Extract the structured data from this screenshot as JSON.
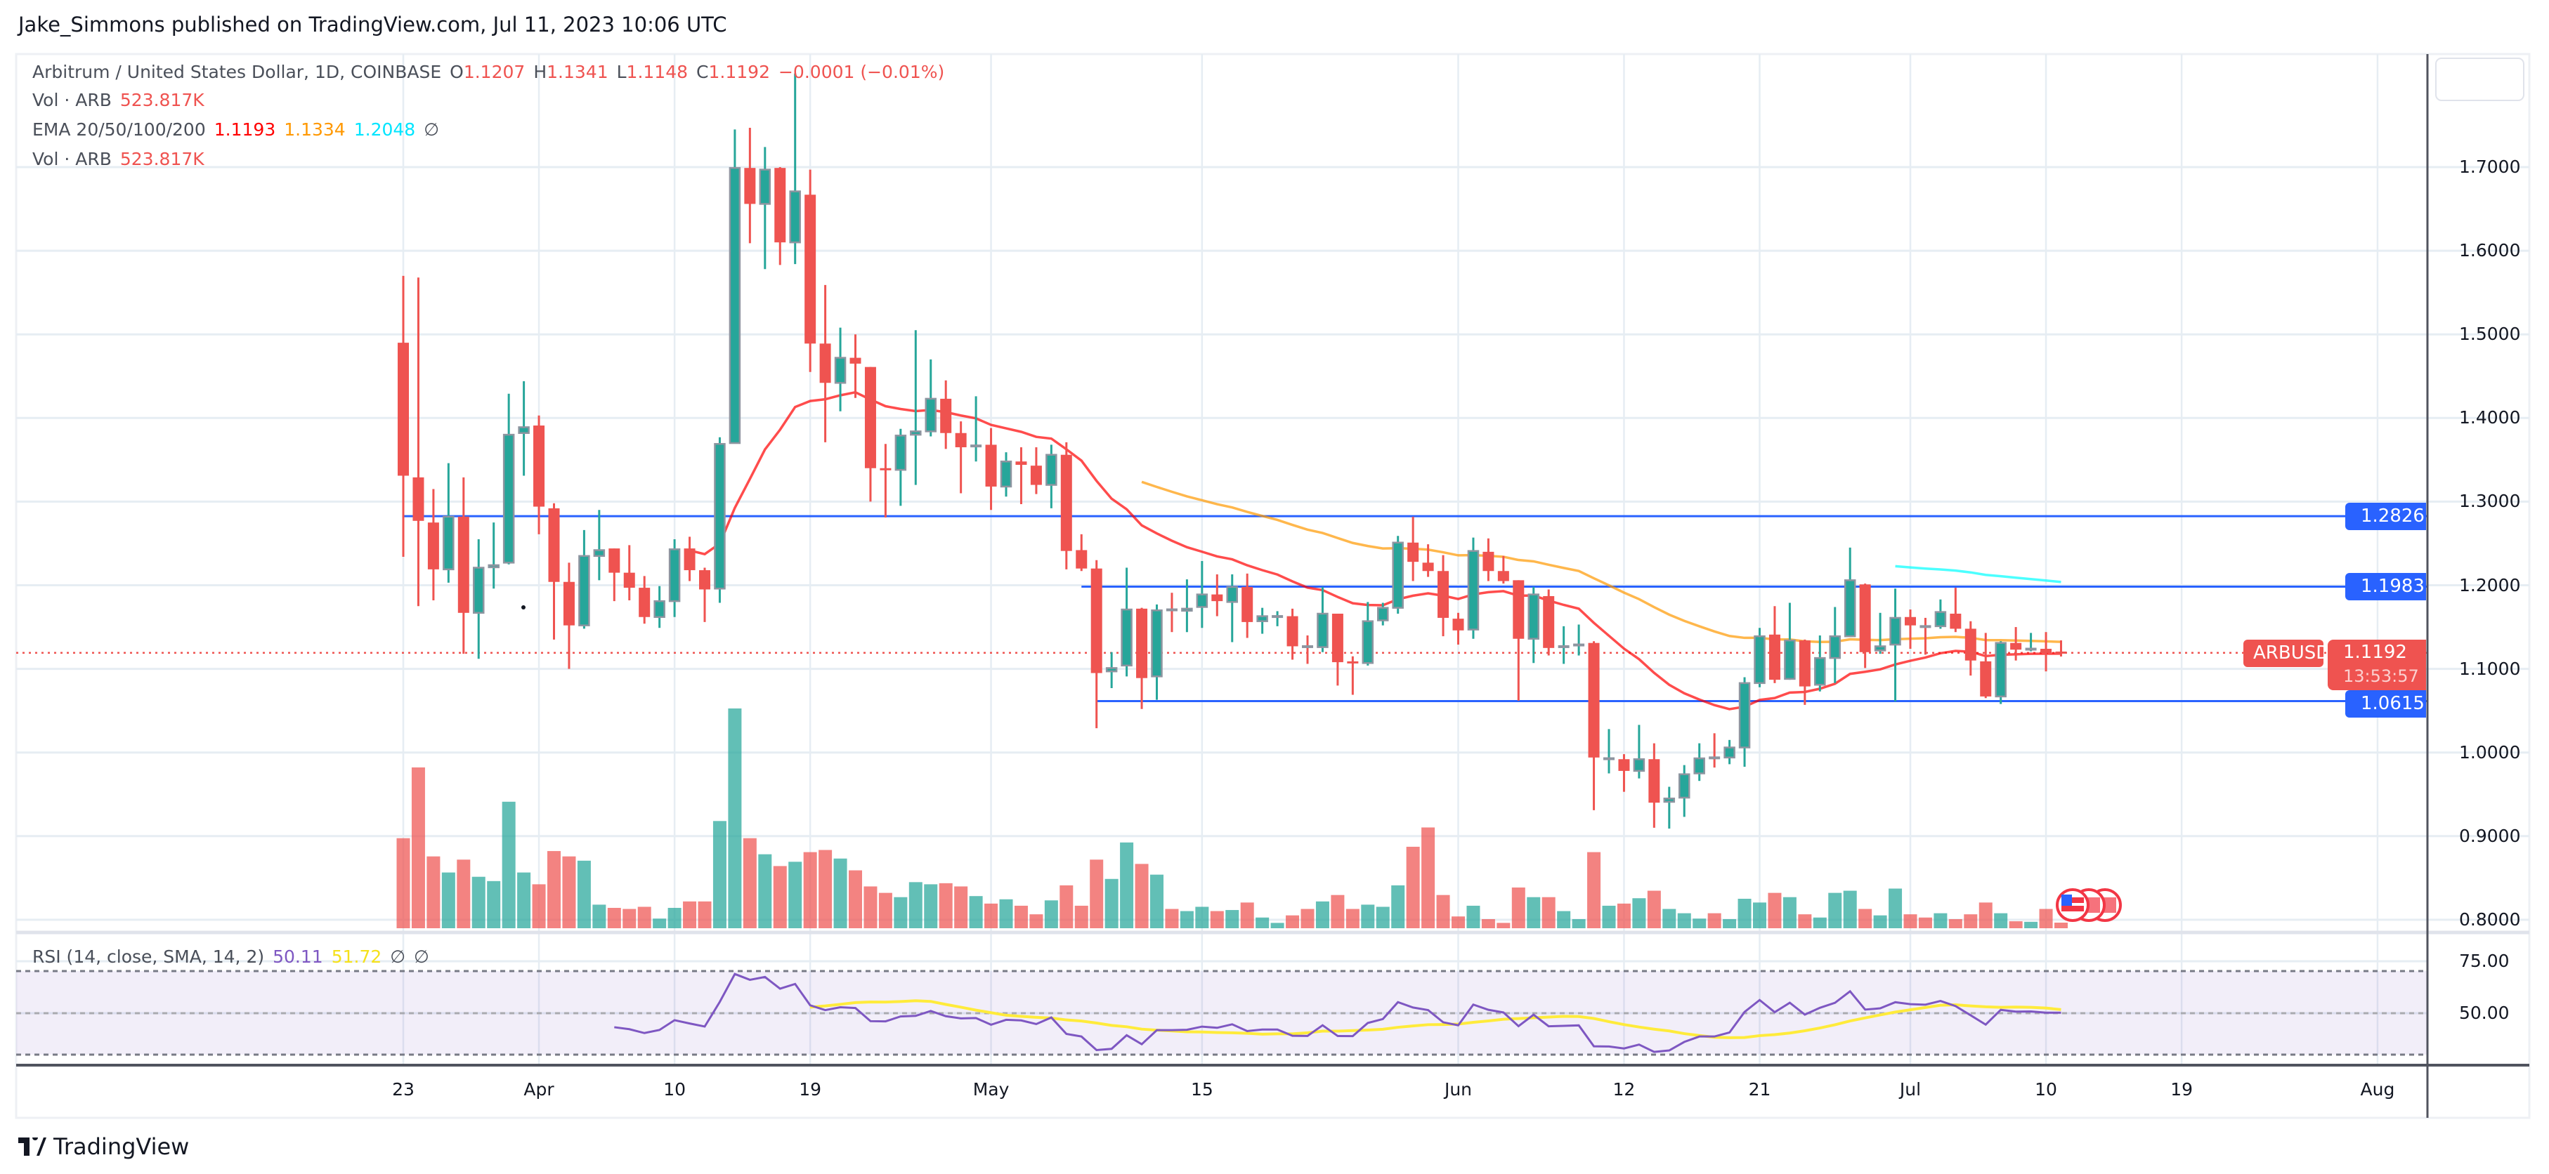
{
  "publisher_line": "Jake_Simmons published on TradingView.com, Jul 11, 2023 10:06 UTC",
  "legend": {
    "symbol": "Arbitrum / United States Dollar, 1D, COINBASE",
    "o_label": "O",
    "o": "1.1207",
    "h_label": "H",
    "h": "1.1341",
    "l_label": "L",
    "l": "1.1148",
    "c_label": "C",
    "c": "1.1192",
    "change": "−0.0001 (−0.01%)",
    "vol1_label": "Vol · ARB",
    "vol1_value": "523.817K",
    "ema_label": "EMA 20/50/100/200",
    "ema20": "1.1193",
    "ema50": "1.1334",
    "ema100": "1.2048",
    "ema200": "∅",
    "vol2_label": "Vol · ARB",
    "vol2_value": "523.817K",
    "rsi_label": "RSI (14, close, SMA, 14, 2)",
    "rsi_value": "50.11",
    "rsi_sma_value": "51.72",
    "rsi_extra1": "∅",
    "rsi_extra2": "∅"
  },
  "price_axis": [
    "1.7000",
    "1.6000",
    "1.5000",
    "1.4000",
    "1.3000",
    "1.2000",
    "1.1000",
    "1.0000",
    "0.9000",
    "0.8000"
  ],
  "rsi_axis": [
    "75.00",
    "50.00"
  ],
  "price_labels": {
    "symbol_tag": "ARBUSD",
    "last_price": "1.1192",
    "countdown": "13:53:57",
    "levels": [
      "1.2826",
      "1.1983",
      "1.0615"
    ]
  },
  "time_axis": [
    {
      "label": "23",
      "date": "2023-03-23"
    },
    {
      "label": "Apr",
      "date": "2023-04-01"
    },
    {
      "label": "10",
      "date": "2023-04-10"
    },
    {
      "label": "19",
      "date": "2023-04-19"
    },
    {
      "label": "May",
      "date": "2023-05-01"
    },
    {
      "label": "15",
      "date": "2023-05-15"
    },
    {
      "label": "Jun",
      "date": "2023-06-01"
    },
    {
      "label": "12",
      "date": "2023-06-12"
    },
    {
      "label": "21",
      "date": "2023-06-21"
    },
    {
      "label": "Jul",
      "date": "2023-07-01"
    },
    {
      "label": "10",
      "date": "2023-07-10"
    },
    {
      "label": "19",
      "date": "2023-07-19"
    },
    {
      "label": "Aug",
      "date": "2023-08-01"
    }
  ],
  "logo_text": "TradingView",
  "colors": {
    "up": "#26a69a",
    "down": "#ef5350",
    "level": "#2962ff",
    "ema20": "#ff0000",
    "ema50": "#ff9800",
    "ema100": "#00ffff",
    "rsi": "#7e57c2",
    "rsi_sma": "#ffeb3b"
  },
  "chart_data": {
    "type": "candlestick",
    "symbol": "ARBUSD",
    "interval": "1D",
    "ylim": [
      0.8,
      1.8
    ],
    "xlim": [
      "2023-03-23",
      "2023-08-04"
    ],
    "grid": true,
    "columns": [
      "date",
      "open",
      "high",
      "low",
      "close",
      "volume_millions"
    ],
    "candles": [
      [
        "2023-03-23",
        1.49,
        1.57,
        1.234,
        1.331,
        8.4
      ],
      [
        "2023-03-24",
        1.329,
        1.568,
        1.175,
        1.277,
        15.0
      ],
      [
        "2023-03-25",
        1.275,
        1.315,
        1.182,
        1.219,
        6.7
      ],
      [
        "2023-03-26",
        1.219,
        1.346,
        1.203,
        1.282,
        5.2
      ],
      [
        "2023-03-27",
        1.282,
        1.329,
        1.118,
        1.167,
        6.4
      ],
      [
        "2023-03-28",
        1.167,
        1.255,
        1.112,
        1.221,
        4.8
      ],
      [
        "2023-03-29",
        1.222,
        1.275,
        1.196,
        1.224,
        4.4
      ],
      [
        "2023-03-30",
        1.227,
        1.429,
        1.225,
        1.38,
        11.8
      ],
      [
        "2023-03-31",
        1.382,
        1.444,
        1.331,
        1.389,
        5.2
      ],
      [
        "2023-04-01",
        1.391,
        1.403,
        1.261,
        1.294,
        4.1
      ],
      [
        "2023-04-02",
        1.292,
        1.298,
        1.135,
        1.204,
        7.2
      ],
      [
        "2023-04-03",
        1.204,
        1.227,
        1.1,
        1.152,
        6.7
      ],
      [
        "2023-04-04",
        1.152,
        1.266,
        1.148,
        1.235,
        6.3
      ],
      [
        "2023-04-05",
        1.235,
        1.29,
        1.206,
        1.242,
        2.2
      ],
      [
        "2023-04-06",
        1.244,
        1.244,
        1.181,
        1.215,
        1.9
      ],
      [
        "2023-04-07",
        1.215,
        1.248,
        1.182,
        1.197,
        1.8
      ],
      [
        "2023-04-08",
        1.197,
        1.211,
        1.154,
        1.162,
        2.0
      ],
      [
        "2023-04-09",
        1.162,
        1.199,
        1.149,
        1.181,
        0.9
      ],
      [
        "2023-04-10",
        1.181,
        1.255,
        1.162,
        1.243,
        1.9
      ],
      [
        "2023-04-11",
        1.244,
        1.258,
        1.205,
        1.218,
        2.5
      ],
      [
        "2023-04-12",
        1.218,
        1.221,
        1.156,
        1.195,
        2.5
      ],
      [
        "2023-04-13",
        1.196,
        1.377,
        1.179,
        1.369,
        10.0
      ],
      [
        "2023-04-14",
        1.37,
        1.745,
        1.37,
        1.699,
        20.5
      ],
      [
        "2023-04-15",
        1.699,
        1.747,
        1.609,
        1.656,
        8.4
      ],
      [
        "2023-04-16",
        1.656,
        1.724,
        1.578,
        1.697,
        6.9
      ],
      [
        "2023-04-17",
        1.699,
        1.7,
        1.583,
        1.61,
        5.8
      ],
      [
        "2023-04-18",
        1.61,
        1.812,
        1.584,
        1.671,
        6.2
      ],
      [
        "2023-04-19",
        1.667,
        1.697,
        1.455,
        1.489,
        7.1
      ],
      [
        "2023-04-20",
        1.489,
        1.559,
        1.371,
        1.442,
        7.3
      ],
      [
        "2023-04-21",
        1.442,
        1.508,
        1.408,
        1.472,
        6.5
      ],
      [
        "2023-04-22",
        1.472,
        1.5,
        1.424,
        1.465,
        5.4
      ],
      [
        "2023-04-23",
        1.461,
        1.461,
        1.3,
        1.34,
        3.9
      ],
      [
        "2023-04-24",
        1.34,
        1.369,
        1.281,
        1.338,
        3.3
      ],
      [
        "2023-04-25",
        1.338,
        1.387,
        1.295,
        1.379,
        2.9
      ],
      [
        "2023-04-26",
        1.38,
        1.505,
        1.32,
        1.384,
        4.3
      ],
      [
        "2023-04-27",
        1.384,
        1.47,
        1.378,
        1.423,
        4.1
      ],
      [
        "2023-04-28",
        1.423,
        1.445,
        1.363,
        1.382,
        4.2
      ],
      [
        "2023-04-29",
        1.382,
        1.396,
        1.31,
        1.365,
        3.9
      ],
      [
        "2023-04-30",
        1.367,
        1.426,
        1.348,
        1.367,
        3.0
      ],
      [
        "2023-05-01",
        1.368,
        1.388,
        1.29,
        1.318,
        2.3
      ],
      [
        "2023-05-02",
        1.318,
        1.359,
        1.306,
        1.348,
        2.7
      ],
      [
        "2023-05-03",
        1.348,
        1.365,
        1.297,
        1.344,
        2.1
      ],
      [
        "2023-05-04",
        1.343,
        1.365,
        1.309,
        1.32,
        1.3
      ],
      [
        "2023-05-05",
        1.32,
        1.368,
        1.292,
        1.356,
        2.6
      ],
      [
        "2023-05-06",
        1.356,
        1.371,
        1.219,
        1.241,
        4.0
      ],
      [
        "2023-05-07",
        1.242,
        1.261,
        1.217,
        1.22,
        2.1
      ],
      [
        "2023-05-08",
        1.22,
        1.23,
        1.029,
        1.095,
        6.4
      ],
      [
        "2023-05-09",
        1.097,
        1.12,
        1.077,
        1.101,
        4.6
      ],
      [
        "2023-05-10",
        1.104,
        1.221,
        1.091,
        1.171,
        8.0
      ],
      [
        "2023-05-11",
        1.172,
        1.173,
        1.052,
        1.089,
        6.0
      ],
      [
        "2023-05-12",
        1.091,
        1.177,
        1.063,
        1.17,
        5.0
      ],
      [
        "2023-05-13",
        1.171,
        1.191,
        1.144,
        1.17,
        1.8
      ],
      [
        "2023-05-14",
        1.17,
        1.207,
        1.144,
        1.172,
        1.6
      ],
      [
        "2023-05-15",
        1.174,
        1.229,
        1.149,
        1.189,
        2.0
      ],
      [
        "2023-05-16",
        1.189,
        1.213,
        1.163,
        1.181,
        1.6
      ],
      [
        "2023-05-17",
        1.18,
        1.213,
        1.132,
        1.198,
        1.7
      ],
      [
        "2023-05-18",
        1.198,
        1.214,
        1.137,
        1.156,
        2.4
      ],
      [
        "2023-05-19",
        1.157,
        1.173,
        1.142,
        1.163,
        1.0
      ],
      [
        "2023-05-20",
        1.163,
        1.169,
        1.151,
        1.163,
        0.5
      ],
      [
        "2023-05-21",
        1.163,
        1.172,
        1.111,
        1.127,
        1.2
      ],
      [
        "2023-05-22",
        1.127,
        1.14,
        1.106,
        1.126,
        1.8
      ],
      [
        "2023-05-23",
        1.126,
        1.198,
        1.12,
        1.166,
        2.5
      ],
      [
        "2023-05-24",
        1.166,
        1.166,
        1.08,
        1.108,
        3.1
      ],
      [
        "2023-05-25",
        1.109,
        1.115,
        1.069,
        1.107,
        1.8
      ],
      [
        "2023-05-26",
        1.107,
        1.18,
        1.104,
        1.157,
        2.2
      ],
      [
        "2023-05-27",
        1.158,
        1.179,
        1.152,
        1.173,
        2.0
      ],
      [
        "2023-05-28",
        1.173,
        1.259,
        1.166,
        1.251,
        4.0
      ],
      [
        "2023-05-29",
        1.251,
        1.282,
        1.205,
        1.228,
        7.6
      ],
      [
        "2023-05-30",
        1.227,
        1.249,
        1.21,
        1.217,
        9.4
      ],
      [
        "2023-05-31",
        1.217,
        1.236,
        1.139,
        1.161,
        3.1
      ],
      [
        "2023-06-01",
        1.16,
        1.167,
        1.129,
        1.146,
        1.1
      ],
      [
        "2023-06-02",
        1.147,
        1.257,
        1.136,
        1.241,
        2.1
      ],
      [
        "2023-06-03",
        1.24,
        1.256,
        1.205,
        1.217,
        0.85
      ],
      [
        "2023-06-04",
        1.217,
        1.235,
        1.202,
        1.205,
        0.5
      ],
      [
        "2023-06-05",
        1.206,
        1.206,
        1.062,
        1.136,
        3.8
      ],
      [
        "2023-06-06",
        1.136,
        1.198,
        1.107,
        1.189,
        2.9
      ],
      [
        "2023-06-07",
        1.187,
        1.195,
        1.116,
        1.125,
        2.9
      ],
      [
        "2023-06-08",
        1.127,
        1.151,
        1.106,
        1.127,
        1.6
      ],
      [
        "2023-06-09",
        1.129,
        1.153,
        1.116,
        1.129,
        0.85
      ],
      [
        "2023-06-10",
        1.131,
        1.133,
        0.931,
        0.994,
        7.1
      ],
      [
        "2023-06-11",
        0.993,
        1.028,
        0.975,
        0.993,
        2.1
      ],
      [
        "2023-06-12",
        0.992,
        0.998,
        0.953,
        0.978,
        2.3
      ],
      [
        "2023-06-13",
        0.978,
        1.033,
        0.969,
        0.992,
        2.8
      ],
      [
        "2023-06-14",
        0.992,
        1.011,
        0.91,
        0.94,
        3.5
      ],
      [
        "2023-06-15",
        0.941,
        0.959,
        0.909,
        0.945,
        1.8
      ],
      [
        "2023-06-16",
        0.946,
        0.985,
        0.923,
        0.974,
        1.4
      ],
      [
        "2023-06-17",
        0.975,
        1.011,
        0.966,
        0.993,
        0.9
      ],
      [
        "2023-06-18",
        0.994,
        1.023,
        0.982,
        0.993,
        1.4
      ],
      [
        "2023-06-19",
        0.994,
        1.015,
        0.986,
        1.006,
        0.85
      ],
      [
        "2023-06-20",
        1.006,
        1.09,
        0.983,
        1.083,
        2.75
      ],
      [
        "2023-06-21",
        1.083,
        1.149,
        1.078,
        1.139,
        2.4
      ],
      [
        "2023-06-22",
        1.141,
        1.175,
        1.083,
        1.087,
        3.3
      ],
      [
        "2023-06-23",
        1.088,
        1.179,
        1.087,
        1.134,
        2.9
      ],
      [
        "2023-06-24",
        1.134,
        1.135,
        1.057,
        1.079,
        1.3
      ],
      [
        "2023-06-25",
        1.081,
        1.14,
        1.073,
        1.113,
        1.0
      ],
      [
        "2023-06-26",
        1.113,
        1.174,
        1.083,
        1.139,
        3.3
      ],
      [
        "2023-06-27",
        1.139,
        1.245,
        1.139,
        1.206,
        3.5
      ],
      [
        "2023-06-28",
        1.201,
        1.202,
        1.101,
        1.12,
        1.8
      ],
      [
        "2023-06-29",
        1.122,
        1.167,
        1.118,
        1.127,
        1.2
      ],
      [
        "2023-06-30",
        1.129,
        1.196,
        1.061,
        1.161,
        3.7
      ],
      [
        "2023-07-01",
        1.162,
        1.171,
        1.124,
        1.152,
        1.3
      ],
      [
        "2023-07-02",
        1.151,
        1.161,
        1.117,
        1.15,
        1.0
      ],
      [
        "2023-07-03",
        1.151,
        1.183,
        1.148,
        1.168,
        1.4
      ],
      [
        "2023-07-04",
        1.166,
        1.197,
        1.144,
        1.148,
        0.85
      ],
      [
        "2023-07-05",
        1.148,
        1.157,
        1.092,
        1.11,
        1.3
      ],
      [
        "2023-07-06",
        1.109,
        1.143,
        1.065,
        1.067,
        2.4
      ],
      [
        "2023-07-07",
        1.067,
        1.133,
        1.058,
        1.131,
        1.4
      ],
      [
        "2023-07-08",
        1.131,
        1.15,
        1.11,
        1.123,
        0.65
      ],
      [
        "2023-07-09",
        1.124,
        1.143,
        1.121,
        1.124,
        0.6
      ],
      [
        "2023-07-10",
        1.124,
        1.144,
        1.097,
        1.119,
        1.8
      ],
      [
        "2023-07-11",
        1.1207,
        1.1341,
        1.1148,
        1.1192,
        0.524
      ]
    ],
    "horizontal_levels": [
      {
        "price": 1.2826,
        "from": "2023-03-23"
      },
      {
        "price": 1.1983,
        "from": "2023-05-07"
      },
      {
        "price": 1.0615,
        "from": "2023-05-08"
      }
    ],
    "ema_periods": [
      20,
      50,
      100
    ],
    "rsi": {
      "period": 14,
      "sma": 14,
      "upper": 70,
      "middle": 50,
      "lower": 30
    }
  }
}
